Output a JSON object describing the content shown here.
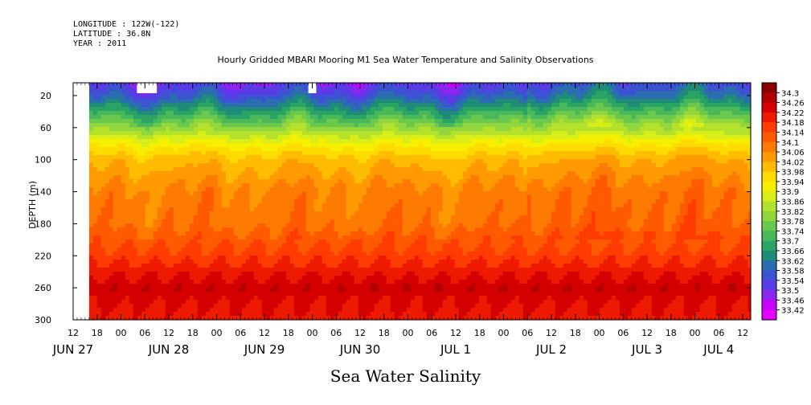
{
  "header": {
    "longitude": "LONGITUDE : 122W(-122)",
    "latitude": "LATITUDE : 36.8N",
    "year": "YEAR : 2011"
  },
  "chart_data": {
    "type": "heatmap",
    "title": "Hourly Gridded MBARI Mooring M1 Sea Water Temperature and Salinity Observations",
    "xlabel": "Sea Water Salinity",
    "ylabel": "DEPTH (m)",
    "x_range": [
      "2011-06-27T12:00",
      "2011-07-04T14:00"
    ],
    "data_start": "2011-06-27T16:00",
    "ylim": [
      300,
      4
    ],
    "y_ticks": [
      20,
      60,
      100,
      140,
      180,
      220,
      260,
      300
    ],
    "x_hour_ticks": [
      {
        "time": "2011-06-27T12:00",
        "label": "12"
      },
      {
        "time": "2011-06-27T18:00",
        "label": "18"
      },
      {
        "time": "2011-06-28T00:00",
        "label": "00"
      },
      {
        "time": "2011-06-28T06:00",
        "label": "06"
      },
      {
        "time": "2011-06-28T12:00",
        "label": "12"
      },
      {
        "time": "2011-06-28T18:00",
        "label": "18"
      },
      {
        "time": "2011-06-29T00:00",
        "label": "00"
      },
      {
        "time": "2011-06-29T06:00",
        "label": "06"
      },
      {
        "time": "2011-06-29T12:00",
        "label": "12"
      },
      {
        "time": "2011-06-29T18:00",
        "label": "18"
      },
      {
        "time": "2011-06-30T00:00",
        "label": "00"
      },
      {
        "time": "2011-06-30T06:00",
        "label": "06"
      },
      {
        "time": "2011-06-30T12:00",
        "label": "12"
      },
      {
        "time": "2011-06-30T18:00",
        "label": "18"
      },
      {
        "time": "2011-07-01T00:00",
        "label": "00"
      },
      {
        "time": "2011-07-01T06:00",
        "label": "06"
      },
      {
        "time": "2011-07-01T12:00",
        "label": "12"
      },
      {
        "time": "2011-07-01T18:00",
        "label": "18"
      },
      {
        "time": "2011-07-02T00:00",
        "label": "00"
      },
      {
        "time": "2011-07-02T06:00",
        "label": "06"
      },
      {
        "time": "2011-07-02T12:00",
        "label": "12"
      },
      {
        "time": "2011-07-02T18:00",
        "label": "18"
      },
      {
        "time": "2011-07-03T00:00",
        "label": "00"
      },
      {
        "time": "2011-07-03T06:00",
        "label": "06"
      },
      {
        "time": "2011-07-03T12:00",
        "label": "12"
      },
      {
        "time": "2011-07-03T18:00",
        "label": "18"
      },
      {
        "time": "2011-07-04T00:00",
        "label": "00"
      },
      {
        "time": "2011-07-04T06:00",
        "label": "06"
      },
      {
        "time": "2011-07-04T12:00",
        "label": "12"
      }
    ],
    "x_day_labels": [
      {
        "time": "2011-06-27T12:00",
        "label": "JUN 27"
      },
      {
        "time": "2011-06-28T12:00",
        "label": "JUN 28"
      },
      {
        "time": "2011-06-29T12:00",
        "label": "JUN 29"
      },
      {
        "time": "2011-06-30T12:00",
        "label": "JUN 30"
      },
      {
        "time": "2011-07-01T12:00",
        "label": "JUL  1"
      },
      {
        "time": "2011-07-02T12:00",
        "label": "JUL  2"
      },
      {
        "time": "2011-07-03T12:00",
        "label": "JUL  3"
      },
      {
        "time": "2011-07-04T06:00",
        "label": "JUL  4"
      }
    ],
    "colorbar": {
      "levels": [
        34.3,
        34.26,
        34.22,
        34.18,
        34.14,
        34.1,
        34.06,
        34.02,
        33.98,
        33.94,
        33.9,
        33.86,
        33.82,
        33.78,
        33.74,
        33.7,
        33.66,
        33.62,
        33.58,
        33.54,
        33.5,
        33.46,
        33.42
      ],
      "colors": [
        "#8a0000",
        "#b00000",
        "#d40000",
        "#ee1a00",
        "#ff3c00",
        "#ff5a00",
        "#ff7a00",
        "#ff9a00",
        "#ffbc00",
        "#ffdc00",
        "#f6f000",
        "#d8ee18",
        "#b4e22c",
        "#90d63c",
        "#6ac84c",
        "#48b85a",
        "#2aa464",
        "#1e8c78",
        "#2a6eb0",
        "#3c52d2",
        "#5a3ce6",
        "#8c24f0",
        "#c800ff",
        "#e400ff"
      ]
    },
    "missing_blocks": [
      {
        "t0": "2011-06-27T12:00",
        "t1": "2011-06-27T16:00",
        "d0": 4,
        "d1": 300
      },
      {
        "t0": "2011-06-28T04:00",
        "t1": "2011-06-28T09:00",
        "d0": 4,
        "d1": 17
      },
      {
        "t0": "2011-06-29T23:00",
        "t1": "2011-06-30T01:00",
        "d0": 4,
        "d1": 17
      }
    ],
    "salinity_profile": [
      {
        "depth": 4,
        "value": 33.5
      },
      {
        "depth": 20,
        "value": 33.56
      },
      {
        "depth": 40,
        "value": 33.68
      },
      {
        "depth": 60,
        "value": 33.8
      },
      {
        "depth": 80,
        "value": 33.92
      },
      {
        "depth": 100,
        "value": 34.0
      },
      {
        "depth": 140,
        "value": 34.07
      },
      {
        "depth": 180,
        "value": 34.09
      },
      {
        "depth": 220,
        "value": 34.16
      },
      {
        "depth": 260,
        "value": 34.25
      },
      {
        "depth": 300,
        "value": 34.2
      }
    ]
  }
}
